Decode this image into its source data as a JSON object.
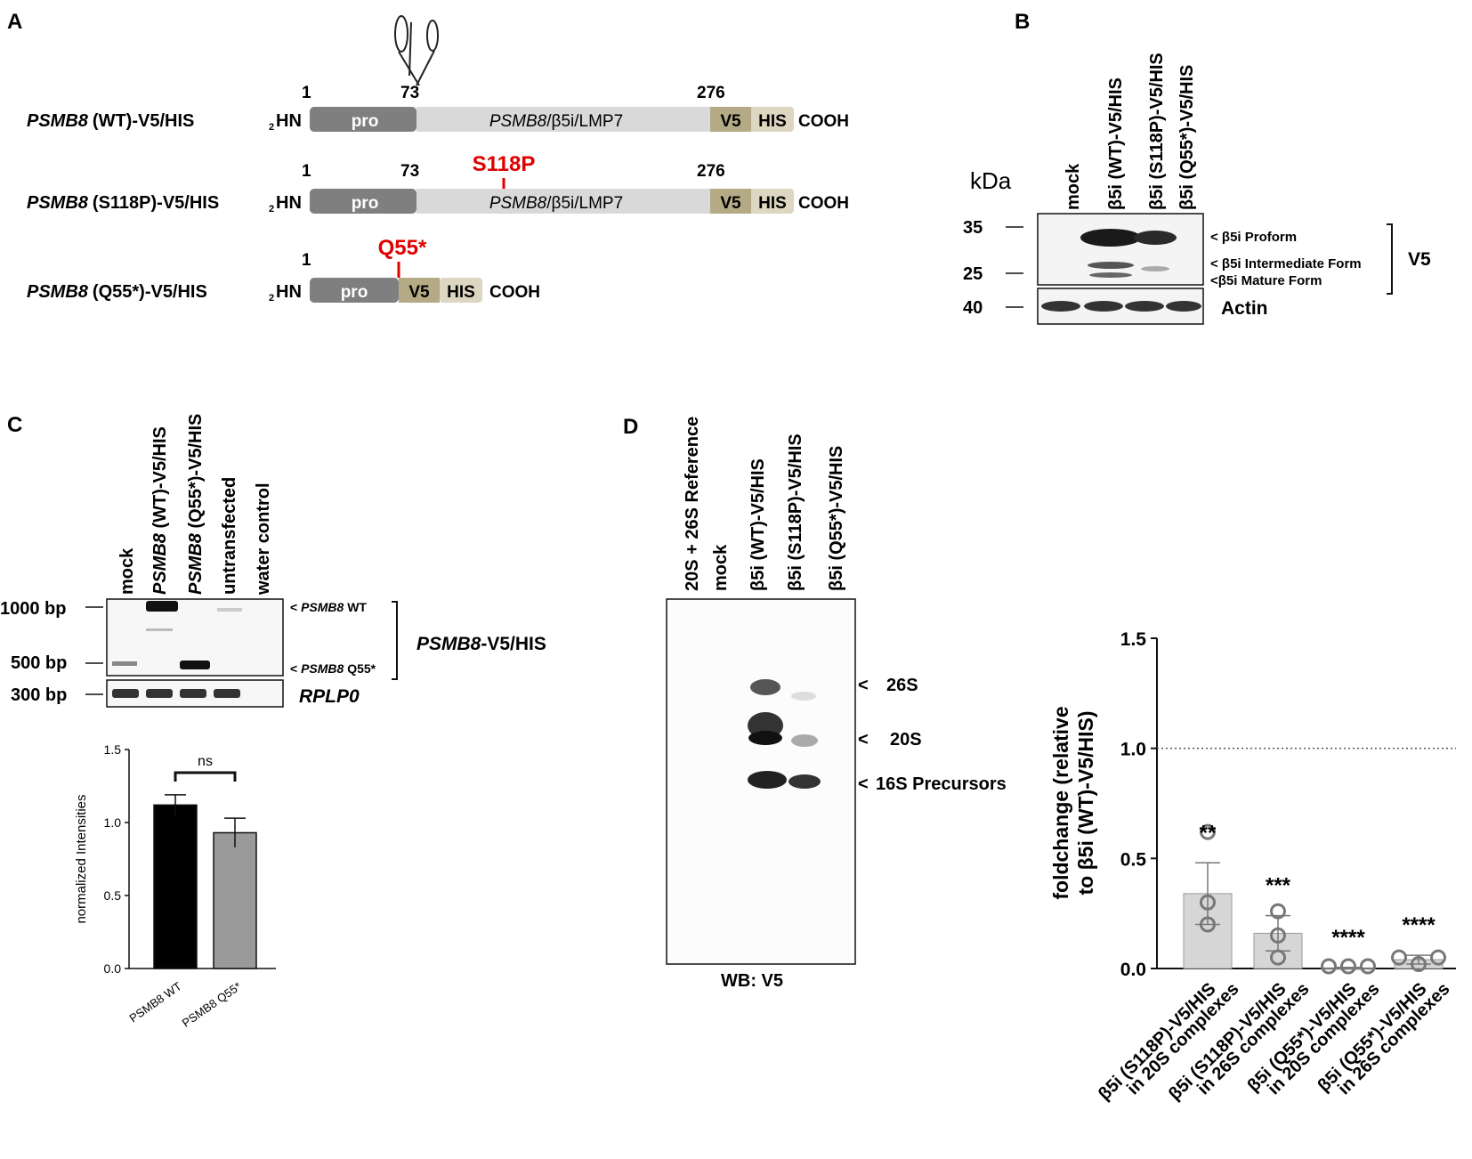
{
  "panel_letters": {
    "a": "A",
    "b": "B",
    "c": "C",
    "d": "D"
  },
  "panel_a": {
    "constructs": [
      {
        "gene": "PSMB8",
        "variant": "(WT)-V5/HIS",
        "mutation": ""
      },
      {
        "gene": "PSMB8",
        "variant": "(S118P)-V5/HIS",
        "mutation": "S118P"
      },
      {
        "gene": "PSMB8",
        "variant": "(Q55*)-V5/HIS",
        "mutation": "Q55*"
      }
    ],
    "nterm_sub": "2",
    "nterm": "HN",
    "cterm": "COOH",
    "pro": "pro",
    "v5": "V5",
    "his": "HIS",
    "domain_gene": "PSMB8",
    "domain_rest": "/β5i/LMP7",
    "pos_1": "1",
    "pos_73": "73",
    "pos_276": "276"
  },
  "panel_b": {
    "kda": "kDa",
    "lanes": [
      "mock",
      "β5i (WT)-V5/HIS",
      "β5i (S118P)-V5/HIS",
      "β5i (Q55*)-V5/HIS"
    ],
    "markers": [
      "35",
      "25",
      "40"
    ],
    "bands": [
      "< β5i Proform",
      "< β5i Intermediate Form",
      "<β5i Mature Form"
    ],
    "v5": "V5",
    "actin": "Actin"
  },
  "panel_c": {
    "lanes": [
      {
        "gene": "",
        "rest": "mock"
      },
      {
        "gene": "PSMB8",
        "rest": " (WT)-V5/HIS"
      },
      {
        "gene": "PSMB8",
        "rest": " (Q55*)-V5/HIS"
      },
      {
        "gene": "",
        "rest": "untransfected"
      },
      {
        "gene": "",
        "rest": "water control"
      }
    ],
    "markers": [
      "1000 bp",
      "500 bp",
      "300 bp"
    ],
    "band_wt_prefix": "< ",
    "band_wt_gene": "PSMB8",
    "band_wt_suffix": " WT",
    "band_q_prefix": "< ",
    "band_q_gene": "PSMB8",
    "band_q_suffix": " Q55*",
    "group_gene": "PSMB8",
    "group_rest": "-V5/HIS",
    "rplp0": "RPLP0"
  },
  "panel_d_blot": {
    "lanes": [
      "20S + 26S Reference",
      "mock",
      "β5i (WT)-V5/HIS",
      "β5i (S118P)-V5/HIS",
      "β5i (Q55*)-V5/HIS"
    ],
    "bands": [
      "26S",
      "20S",
      "16S Precursors"
    ],
    "caption": "WB: V5"
  },
  "chart_data": [
    {
      "type": "bar",
      "categories": [
        "PSMB8 WT",
        "PSMB8 Q55*"
      ],
      "values": [
        1.12,
        0.93
      ],
      "errors": [
        0.07,
        0.1
      ],
      "colors": [
        "#000000",
        "#9a9a9a"
      ],
      "ylabel": "normalized Intensities",
      "ylim": [
        0,
        1.5
      ],
      "yticks": [
        "0.0",
        "0.5",
        "1.0",
        "1.5"
      ],
      "significance": "ns"
    },
    {
      "type": "bar",
      "categories": [
        [
          "β5i (S118P)-V5/HIS",
          "in 20S complexes"
        ],
        [
          "β5i (S118P)-V5/HIS",
          "in 26S complexes"
        ],
        [
          "β5i (Q55*)-V5/HIS",
          "in 20S complexes"
        ],
        [
          "β5i (Q55*)-V5/HIS",
          "in 26S complexes"
        ]
      ],
      "values": [
        0.34,
        0.16,
        0.0,
        0.04
      ],
      "errors": [
        0.14,
        0.08,
        0.005,
        0.02
      ],
      "points": [
        [
          0.62,
          0.2,
          0.3
        ],
        [
          0.26,
          0.15,
          0.05
        ],
        [
          0.01,
          0.01,
          0.01
        ],
        [
          0.05,
          0.02,
          0.05
        ]
      ],
      "stars": [
        "**",
        "***",
        "****",
        "****"
      ],
      "bar_color": "#d6d6d6",
      "ylabel_lines": [
        "foldchange (relative",
        "to β5i (WT)-V5/HIS)"
      ],
      "ylim": [
        0,
        1.5
      ],
      "yticks": [
        "0.0",
        "0.5",
        "1.0",
        "1.5"
      ],
      "reference_line": 1.0
    }
  ]
}
